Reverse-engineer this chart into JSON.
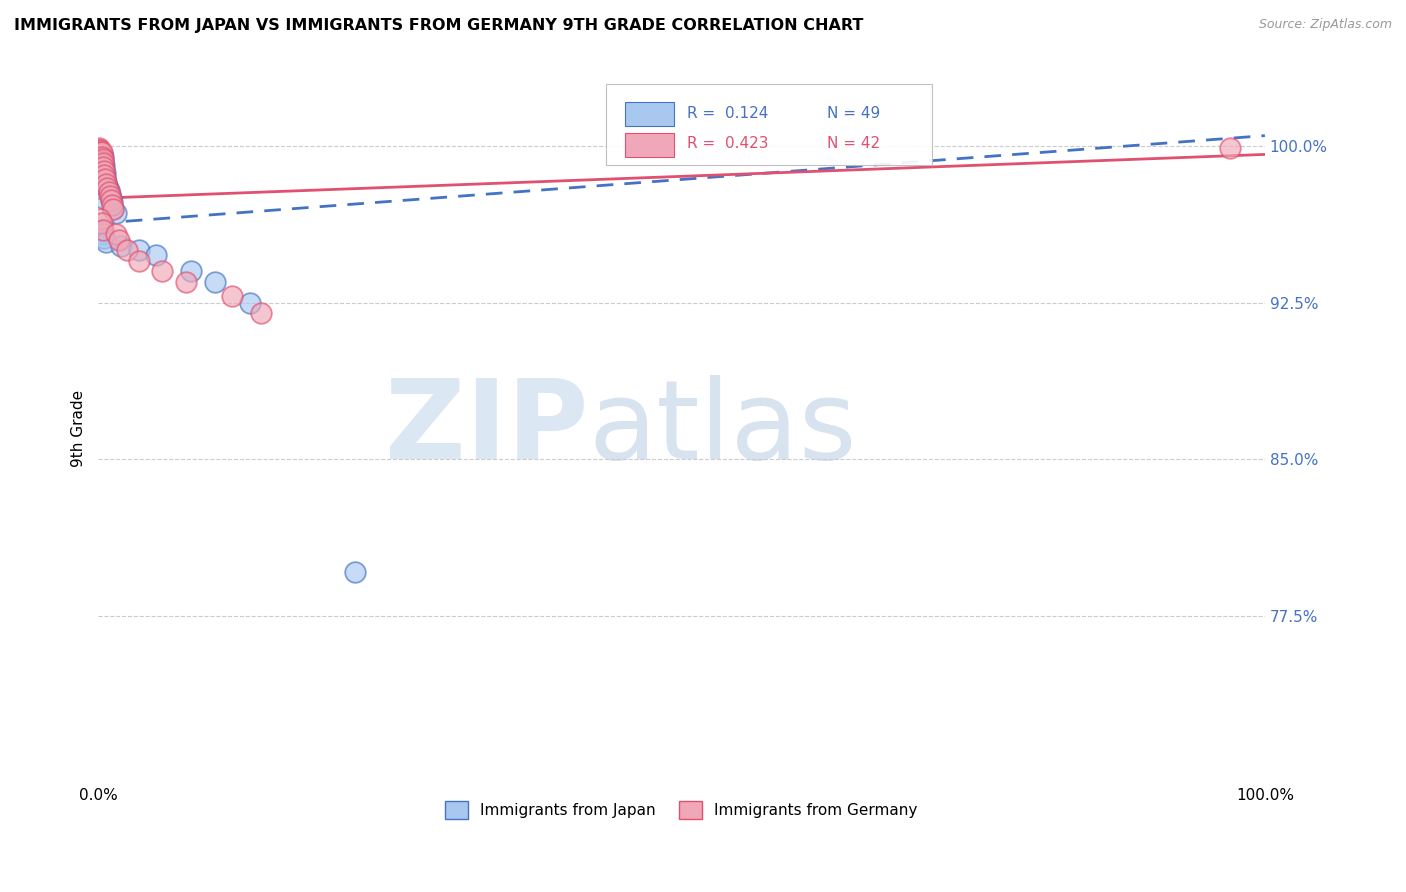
{
  "title": "IMMIGRANTS FROM JAPAN VS IMMIGRANTS FROM GERMANY 9TH GRADE CORRELATION CHART",
  "source": "Source: ZipAtlas.com",
  "ylabel": "9th Grade",
  "xlim": [
    0,
    1.0
  ],
  "ylim": [
    0.695,
    1.035
  ],
  "yticks": [
    0.775,
    0.85,
    0.925,
    1.0
  ],
  "yticklabels": [
    "77.5%",
    "85.0%",
    "92.5%",
    "100.0%"
  ],
  "japan_color": "#A8C8F0",
  "germany_color": "#F0A8B8",
  "japan_line_color": "#4472C4",
  "germany_line_color": "#E05070",
  "legend_japan_label": "Immigrants from Japan",
  "legend_germany_label": "Immigrants from Germany",
  "R_japan": 0.124,
  "N_japan": 49,
  "R_germany": 0.423,
  "N_germany": 42,
  "japan_x": [
    0.001,
    0.001,
    0.001,
    0.001,
    0.001,
    0.001,
    0.001,
    0.001,
    0.001,
    0.001,
    0.002,
    0.002,
    0.002,
    0.002,
    0.002,
    0.002,
    0.002,
    0.002,
    0.003,
    0.003,
    0.003,
    0.003,
    0.003,
    0.004,
    0.004,
    0.004,
    0.005,
    0.005,
    0.006,
    0.006,
    0.007,
    0.008,
    0.009,
    0.01,
    0.011,
    0.012,
    0.013,
    0.015,
    0.003,
    0.004,
    0.005,
    0.007,
    0.02,
    0.035,
    0.05,
    0.08,
    0.1,
    0.13,
    0.22
  ],
  "japan_y": [
    0.998,
    0.996,
    0.994,
    0.992,
    0.99,
    0.988,
    0.986,
    0.984,
    0.982,
    0.98,
    0.997,
    0.995,
    0.993,
    0.991,
    0.989,
    0.987,
    0.985,
    0.983,
    0.996,
    0.994,
    0.992,
    0.99,
    0.988,
    0.995,
    0.993,
    0.975,
    0.991,
    0.989,
    0.987,
    0.985,
    0.983,
    0.981,
    0.979,
    0.977,
    0.975,
    0.973,
    0.97,
    0.968,
    0.96,
    0.958,
    0.956,
    0.954,
    0.952,
    0.95,
    0.948,
    0.94,
    0.935,
    0.925,
    0.796
  ],
  "germany_x": [
    0.001,
    0.001,
    0.001,
    0.001,
    0.001,
    0.001,
    0.001,
    0.001,
    0.002,
    0.002,
    0.002,
    0.002,
    0.002,
    0.003,
    0.003,
    0.003,
    0.003,
    0.004,
    0.004,
    0.004,
    0.005,
    0.005,
    0.006,
    0.007,
    0.008,
    0.009,
    0.01,
    0.011,
    0.012,
    0.013,
    0.002,
    0.003,
    0.004,
    0.015,
    0.018,
    0.025,
    0.035,
    0.055,
    0.075,
    0.115,
    0.14,
    0.97
  ],
  "germany_y": [
    0.999,
    0.998,
    0.997,
    0.996,
    0.994,
    0.992,
    0.99,
    0.988,
    0.998,
    0.997,
    0.995,
    0.993,
    0.991,
    0.997,
    0.995,
    0.993,
    0.991,
    0.994,
    0.992,
    0.99,
    0.988,
    0.986,
    0.984,
    0.982,
    0.98,
    0.978,
    0.976,
    0.974,
    0.972,
    0.97,
    0.965,
    0.963,
    0.96,
    0.958,
    0.955,
    0.95,
    0.945,
    0.94,
    0.935,
    0.928,
    0.92,
    0.999
  ]
}
